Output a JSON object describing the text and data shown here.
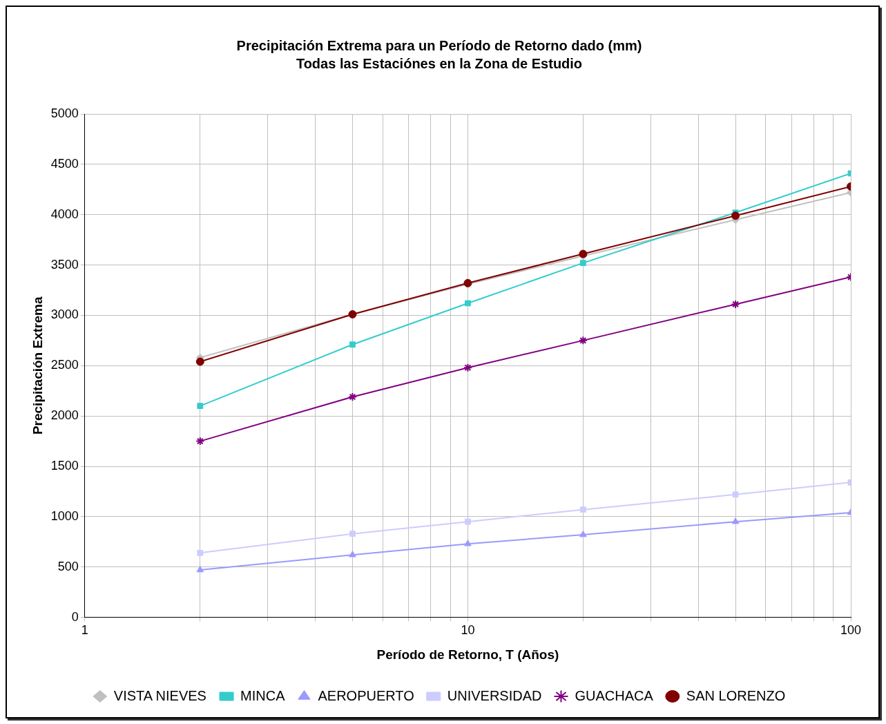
{
  "chart_data": {
    "type": "line",
    "title": "Precipitación Extrema para un Período de Retorno dado (mm)",
    "subtitle": "Todas las Estaciónes en la Zona de Estudio",
    "xlabel": "Período de Retorno, T (Años)",
    "ylabel": "Precipitación Extrema",
    "log": "x",
    "x": [
      2,
      5,
      10,
      20,
      50,
      100
    ],
    "series": [
      {
        "name": "VISTA NIEVES",
        "color": "#c0c0c0",
        "marker": "diamond",
        "values": [
          2580,
          3010,
          3310,
          3590,
          3950,
          4220
        ]
      },
      {
        "name": "MINCA",
        "color": "#33cccc",
        "marker": "square",
        "values": [
          2100,
          2710,
          3120,
          3520,
          4020,
          4410
        ]
      },
      {
        "name": "AEROPUERTO",
        "color": "#9999ff",
        "marker": "triangle",
        "values": [
          470,
          620,
          730,
          820,
          950,
          1040
        ]
      },
      {
        "name": "UNIVERSIDAD",
        "color": "#ccccff",
        "marker": "square",
        "values": [
          640,
          830,
          950,
          1070,
          1220,
          1340
        ]
      },
      {
        "name": "GUACHACA",
        "color": "#800080",
        "marker": "cross",
        "values": [
          1750,
          2190,
          2480,
          2750,
          3110,
          3380
        ]
      },
      {
        "name": "SAN LORENZO",
        "color": "#800000",
        "marker": "circle",
        "values": [
          2540,
          3010,
          3320,
          3610,
          3990,
          4280
        ]
      }
    ],
    "xlim": [
      1,
      100
    ],
    "xticks": [
      1,
      {
        "value": 2,
        "label": null
      },
      {
        "value": 3,
        "label": null
      },
      {
        "value": 4,
        "label": null
      },
      {
        "value": 5,
        "label": null
      },
      {
        "value": 6,
        "label": null
      },
      {
        "value": 7,
        "label": null
      },
      {
        "value": 8,
        "label": null
      },
      {
        "value": 9,
        "label": null
      },
      10,
      {
        "value": 20,
        "label": null
      },
      {
        "value": 30,
        "label": null
      },
      {
        "value": 40,
        "label": null
      },
      {
        "value": 50,
        "label": null
      },
      {
        "value": 60,
        "label": null
      },
      {
        "value": 70,
        "label": null
      },
      {
        "value": 80,
        "label": null
      },
      {
        "value": 90,
        "label": null
      },
      100
    ],
    "ylim": [
      0,
      5000
    ],
    "yticks": [
      0,
      500,
      1000,
      1500,
      2000,
      2500,
      3000,
      3500,
      4000,
      4500,
      5000
    ],
    "grid": true,
    "legend": "bottom",
    "line_style": "solid"
  }
}
